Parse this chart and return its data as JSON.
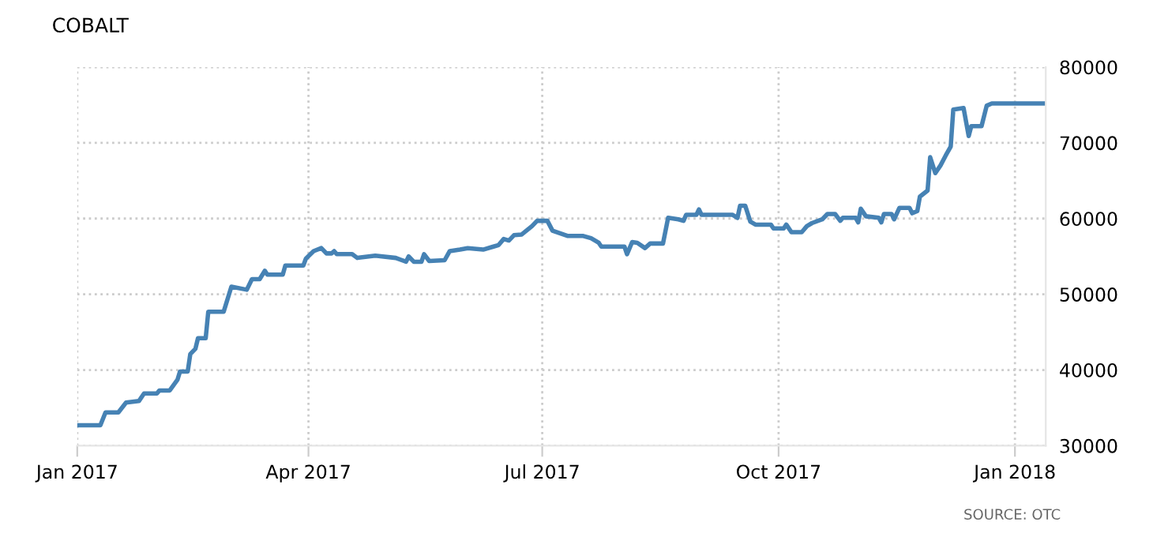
{
  "chart_data": {
    "type": "line",
    "title": "COBALT",
    "annotations": [
      "SOURCE: OTC"
    ],
    "x": [
      "2017-01-01",
      "2017-01-10",
      "2017-01-12",
      "2017-01-17",
      "2017-01-20",
      "2017-01-25",
      "2017-01-27",
      "2017-02-01",
      "2017-02-02",
      "2017-02-06",
      "2017-02-09",
      "2017-02-10",
      "2017-02-13",
      "2017-02-14",
      "2017-02-16",
      "2017-02-17",
      "2017-02-20",
      "2017-02-21",
      "2017-02-27",
      "2017-03-02",
      "2017-03-08",
      "2017-03-10",
      "2017-03-13",
      "2017-03-15",
      "2017-03-16",
      "2017-03-22",
      "2017-03-23",
      "2017-03-30",
      "2017-03-31",
      "2017-04-03",
      "2017-04-06",
      "2017-04-08",
      "2017-04-10",
      "2017-04-11",
      "2017-04-12",
      "2017-04-18",
      "2017-04-20",
      "2017-04-27",
      "2017-05-05",
      "2017-05-09",
      "2017-05-10",
      "2017-05-12",
      "2017-05-15",
      "2017-05-16",
      "2017-05-18",
      "2017-05-24",
      "2017-05-26",
      "2017-05-30",
      "2017-06-02",
      "2017-06-08",
      "2017-06-12",
      "2017-06-14",
      "2017-06-16",
      "2017-06-18",
      "2017-06-20",
      "2017-06-23",
      "2017-06-27",
      "2017-06-29",
      "2017-07-03",
      "2017-07-05",
      "2017-07-11",
      "2017-07-17",
      "2017-07-20",
      "2017-07-23",
      "2017-07-24",
      "2017-08-02",
      "2017-08-03",
      "2017-08-05",
      "2017-08-07",
      "2017-08-10",
      "2017-08-12",
      "2017-08-17",
      "2017-08-19",
      "2017-08-23",
      "2017-08-25",
      "2017-08-26",
      "2017-08-30",
      "2017-08-31",
      "2017-09-01",
      "2017-09-13",
      "2017-09-15",
      "2017-09-16",
      "2017-09-18",
      "2017-09-20",
      "2017-09-22",
      "2017-09-28",
      "2017-09-29",
      "2017-10-03",
      "2017-10-04",
      "2017-10-06",
      "2017-10-10",
      "2017-10-12",
      "2017-10-14",
      "2017-10-18",
      "2017-10-20",
      "2017-10-23",
      "2017-10-25",
      "2017-10-26",
      "2017-10-31",
      "2017-11-01",
      "2017-11-02",
      "2017-11-04",
      "2017-11-09",
      "2017-11-10",
      "2017-11-11",
      "2017-11-14",
      "2017-11-15",
      "2017-11-17",
      "2017-11-21",
      "2017-11-22",
      "2017-11-24",
      "2017-11-25",
      "2017-11-28",
      "2017-11-29",
      "2017-12-01",
      "2017-12-03",
      "2017-12-05",
      "2017-12-07",
      "2017-12-08",
      "2017-12-12",
      "2017-12-14",
      "2017-12-15",
      "2017-12-19",
      "2017-12-21",
      "2017-12-23",
      "2018-01-13"
    ],
    "series": [
      {
        "color": "#4682b4",
        "values": [
          32700,
          32700,
          34400,
          34400,
          35700,
          35900,
          36900,
          36900,
          37300,
          37300,
          38700,
          39800,
          39800,
          42100,
          42800,
          44200,
          44200,
          47700,
          47700,
          51000,
          50600,
          52000,
          52000,
          53100,
          52600,
          52600,
          53800,
          53800,
          54700,
          55700,
          56100,
          55400,
          55400,
          55700,
          55300,
          55300,
          54800,
          55100,
          54800,
          54300,
          55000,
          54300,
          54300,
          55300,
          54400,
          54500,
          55700,
          55900,
          56100,
          55900,
          56300,
          56500,
          57300,
          57100,
          57800,
          57900,
          59000,
          59700,
          59700,
          58400,
          57700,
          57700,
          57400,
          56800,
          56300,
          56300,
          55300,
          56900,
          56800,
          56100,
          56700,
          56700,
          60100,
          59900,
          59700,
          60500,
          60500,
          61200,
          60500,
          60500,
          60100,
          61700,
          61700,
          59600,
          59200,
          59200,
          58700,
          58700,
          59200,
          58200,
          58200,
          59000,
          59400,
          59900,
          60600,
          60600,
          59700,
          60100,
          60100,
          59500,
          61300,
          60300,
          60100,
          59500,
          60600,
          60600,
          59900,
          61400,
          61400,
          60700,
          61000,
          62900,
          63700,
          68100,
          66000,
          67000,
          68300,
          69500,
          74400,
          74600,
          70900,
          72200,
          72200,
          74900,
          75200,
          75200
        ]
      }
    ],
    "xlim": [
      "2017-01-01",
      "2018-01-13"
    ],
    "xticks": [
      {
        "value": "2017-01-01",
        "label": "Jan 2017"
      },
      {
        "value": "2017-04-01",
        "label": "Apr 2017"
      },
      {
        "value": "2017-07-01",
        "label": "Jul 2017"
      },
      {
        "value": "2017-10-01",
        "label": "Oct 2017"
      },
      {
        "value": "2018-01-01",
        "label": "Jan 2018"
      }
    ],
    "ylim": [
      30000,
      80000
    ],
    "yticks": [
      30000,
      40000,
      50000,
      60000,
      70000,
      80000
    ],
    "grid": true,
    "legend": false,
    "marker": "none",
    "line_style": "solid"
  }
}
